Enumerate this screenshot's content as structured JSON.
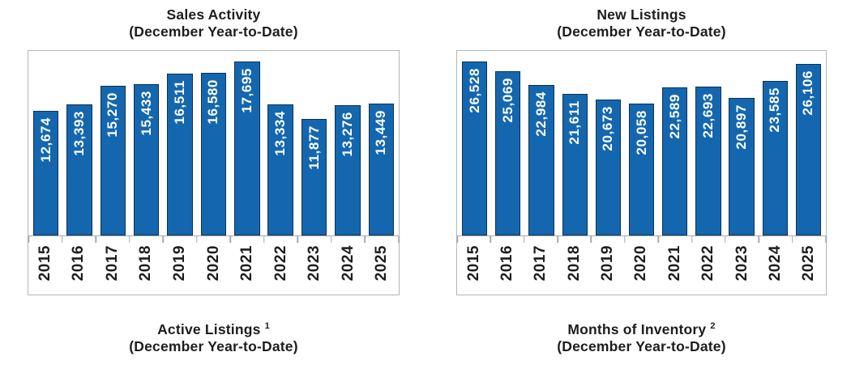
{
  "page": {
    "background": "#FFFFFF"
  },
  "colors": {
    "bar_fill": "#1467AE",
    "bar_border": "#0B3254",
    "bar_label_text": "#FFFFFF",
    "axis_gray": "#A9A9A9",
    "frame_border_gray": "#B5B5B5",
    "text_black": "#1D1D1D"
  },
  "chart_data": [
    {
      "type": "bar",
      "title": "Sales Activity",
      "subtitle": "(December Year-to-Date)",
      "categories": [
        "2015",
        "2016",
        "2017",
        "2018",
        "2019",
        "2020",
        "2021",
        "2022",
        "2023",
        "2024",
        "2025"
      ],
      "values": [
        12674,
        13393,
        15270,
        15433,
        16511,
        16580,
        17695,
        13334,
        11877,
        13276,
        13449
      ],
      "value_labels": [
        "12,674",
        "13,393",
        "15,270",
        "15,433",
        "16,511",
        "16,580",
        "17,695",
        "13,334",
        "11,877",
        "13,276",
        "13,449"
      ],
      "ylim": [
        0,
        18800
      ],
      "grid": false,
      "legend": "none",
      "bar_label_position": "inside-top",
      "label_rotation": "vertical"
    },
    {
      "type": "bar",
      "title": "New Listings",
      "subtitle": "(December Year-to-Date)",
      "categories": [
        "2015",
        "2016",
        "2017",
        "2018",
        "2019",
        "2020",
        "2021",
        "2022",
        "2023",
        "2024",
        "2025"
      ],
      "values": [
        26528,
        25069,
        22984,
        21611,
        20673,
        20058,
        22589,
        22693,
        20897,
        23585,
        26106
      ],
      "value_labels": [
        "26,528",
        "25,069",
        "22,984",
        "21,611",
        "20,673",
        "20,058",
        "22,589",
        "22,693",
        "20,897",
        "23,585",
        "26,106"
      ],
      "ylim": [
        0,
        28100
      ],
      "grid": false,
      "legend": "none",
      "bar_label_position": "inside-top",
      "label_rotation": "vertical"
    }
  ],
  "footer_titles": [
    {
      "title": "Active Listings",
      "footnote": "1",
      "subtitle": "(December Year-to-Date)"
    },
    {
      "title": "Months of Inventory",
      "footnote": "2",
      "subtitle": "(December Year-to-Date)"
    }
  ]
}
